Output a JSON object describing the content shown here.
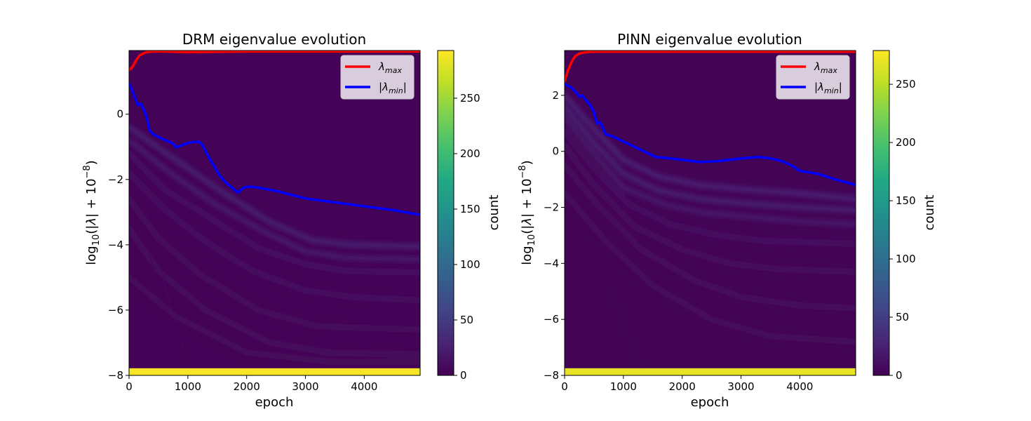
{
  "chart_data": [
    {
      "type": "heatmap",
      "title": "DRM eigenvalue evolution",
      "xlabel": "epoch",
      "ylabel": "log10(|λ| + 10^-8)",
      "xlim": [
        0,
        4950
      ],
      "ylim": [
        -8,
        1.95
      ],
      "xticks": [
        "0",
        "1000",
        "2000",
        "3000",
        "4000"
      ],
      "xtick_values": [
        0,
        1000,
        2000,
        3000,
        4000
      ],
      "yticks": [
        "−8",
        "−6",
        "−4",
        "−2",
        "0"
      ],
      "ytick_values": [
        -8,
        -6,
        -4,
        -2,
        0
      ],
      "colorbar": {
        "label": "count",
        "range": [
          0,
          293
        ],
        "ticks": [
          "0",
          "50",
          "100",
          "150",
          "200",
          "250"
        ],
        "tick_values": [
          0,
          50,
          100,
          150,
          200,
          250
        ]
      },
      "legend": {
        "position": "top-right",
        "entries": [
          "λmax",
          "|λmin|"
        ]
      },
      "series": [
        {
          "name": "λmax",
          "color": "#ff0000",
          "x": [
            0,
            60,
            120,
            180,
            240,
            300,
            400,
            600,
            1000,
            2000,
            3000,
            4000,
            4950
          ],
          "y": [
            1.35,
            1.45,
            1.65,
            1.8,
            1.86,
            1.9,
            1.92,
            1.92,
            1.9,
            1.92,
            1.92,
            1.92,
            1.92
          ]
        },
        {
          "name": "|λmin|",
          "color": "#0000ff",
          "x": [
            0,
            50,
            100,
            150,
            200,
            250,
            300,
            350,
            400,
            500,
            650,
            750,
            800,
            900,
            1000,
            1100,
            1200,
            1250,
            1350,
            1450,
            1550,
            1650,
            1750,
            1850,
            1900,
            1950,
            2050,
            2200,
            2500,
            3000,
            3500,
            4000,
            4500,
            4950
          ],
          "y": [
            0.95,
            0.75,
            0.5,
            0.28,
            0.32,
            0.15,
            -0.1,
            -0.5,
            -0.6,
            -0.7,
            -0.82,
            -0.9,
            -1.02,
            -0.95,
            -0.88,
            -0.85,
            -0.85,
            -0.95,
            -1.3,
            -1.6,
            -1.9,
            -2.1,
            -2.25,
            -2.4,
            -2.32,
            -2.25,
            -2.22,
            -2.25,
            -2.35,
            -2.58,
            -2.7,
            -2.82,
            -2.94,
            -3.08
          ]
        }
      ],
      "heat": {
        "bottom_band_count": 290,
        "background_count": 2,
        "ridges": [
          {
            "x": [
              0,
              800,
              1600,
              2400,
              3100,
              3800,
              4950
            ],
            "y": [
              -0.4,
              -1.4,
              -2.4,
              -3.3,
              -3.85,
              -4.0,
              -4.05
            ],
            "count": 25
          },
          {
            "x": [
              0,
              700,
              1500,
              2300,
              3000,
              3700,
              4950
            ],
            "y": [
              -0.8,
              -1.8,
              -2.8,
              -3.6,
              -4.2,
              -4.4,
              -4.45
            ],
            "count": 20
          },
          {
            "x": [
              0,
              600,
              1400,
              2200,
              3000,
              3700,
              4950
            ],
            "y": [
              -1.2,
              -2.3,
              -3.2,
              -4.1,
              -4.6,
              -4.8,
              -4.85
            ],
            "count": 15
          },
          {
            "x": [
              0,
              600,
              1300,
              2100,
              3000,
              3800,
              4950
            ],
            "y": [
              -1.8,
              -2.9,
              -3.9,
              -4.8,
              -5.4,
              -5.6,
              -5.7
            ],
            "count": 10
          },
          {
            "x": [
              0,
              500,
              1200,
              2200,
              3200,
              4950
            ],
            "y": [
              -2.6,
              -3.8,
              -4.9,
              -6.0,
              -6.5,
              -6.6
            ],
            "count": 8
          },
          {
            "x": [
              0,
              500,
              1300,
              2400,
              3400,
              4950
            ],
            "y": [
              -3.5,
              -4.8,
              -6.0,
              -7.0,
              -7.3,
              -7.35
            ],
            "count": 7
          },
          {
            "x": [
              0,
              800,
              2000,
              3500,
              4950
            ],
            "y": [
              -5.0,
              -6.2,
              -7.3,
              -7.6,
              -7.6
            ],
            "count": 6
          }
        ],
        "faint_lines": [
          {
            "x": [
              500,
              700,
              900,
              1100
            ],
            "y": [
              -4.5,
              -5.8,
              -7.0,
              -8.0
            ],
            "count": 8
          },
          {
            "x": [
              300,
              500,
              700,
              900
            ],
            "y": [
              -4.0,
              -5.2,
              -6.5,
              -8.0
            ],
            "count": 6
          }
        ]
      }
    },
    {
      "type": "heatmap",
      "title": "PINN eigenvalue evolution",
      "xlabel": "epoch",
      "ylabel": "log10(|λ| + 10^-8)",
      "xlim": [
        0,
        4950
      ],
      "ylim": [
        -8,
        3.6
      ],
      "xticks": [
        "0",
        "1000",
        "2000",
        "3000",
        "4000"
      ],
      "xtick_values": [
        0,
        1000,
        2000,
        3000,
        4000
      ],
      "yticks": [
        "−8",
        "−6",
        "−4",
        "−2",
        "0",
        "2"
      ],
      "ytick_values": [
        -8,
        -6,
        -4,
        -2,
        0,
        2
      ],
      "colorbar": {
        "label": "count",
        "range": [
          0,
          279
        ],
        "ticks": [
          "0",
          "50",
          "100",
          "150",
          "200",
          "250"
        ],
        "tick_values": [
          0,
          50,
          100,
          150,
          200,
          250
        ]
      },
      "legend": {
        "position": "top-right",
        "entries": [
          "λmax",
          "|λmin|"
        ]
      },
      "series": [
        {
          "name": "λmax",
          "color": "#ff0000",
          "x": [
            0,
            60,
            120,
            180,
            240,
            300,
            400,
            600,
            1000,
            2000,
            3000,
            4000,
            4950
          ],
          "y": [
            2.5,
            2.9,
            3.2,
            3.4,
            3.48,
            3.52,
            3.55,
            3.56,
            3.56,
            3.56,
            3.56,
            3.56,
            3.56
          ]
        },
        {
          "name": "|λmin|",
          "color": "#0000ff",
          "x": [
            0,
            100,
            200,
            250,
            300,
            350,
            400,
            450,
            500,
            550,
            600,
            650,
            700,
            800,
            1000,
            1200,
            1400,
            1550,
            1800,
            2000,
            2300,
            2600,
            3000,
            3300,
            3500,
            3700,
            3900,
            4000,
            4300,
            4600,
            4950
          ],
          "y": [
            2.4,
            2.3,
            2.1,
            1.95,
            2.0,
            1.85,
            1.75,
            1.6,
            1.4,
            1.0,
            1.05,
            0.85,
            0.6,
            0.55,
            0.35,
            0.15,
            -0.05,
            -0.2,
            -0.25,
            -0.3,
            -0.38,
            -0.35,
            -0.25,
            -0.2,
            -0.25,
            -0.35,
            -0.55,
            -0.7,
            -0.8,
            -1.0,
            -1.2
          ]
        }
      ],
      "heat": {
        "bottom_band_count": 270,
        "background_count": 2,
        "ridges": [
          {
            "x": [
              0,
              500,
              1000,
              1600,
              2300,
              3000,
              4000,
              4950
            ],
            "y": [
              2.0,
              0.8,
              -0.3,
              -0.9,
              -1.2,
              -1.35,
              -1.5,
              -1.7
            ],
            "count": 25
          },
          {
            "x": [
              0,
              500,
              1000,
              1600,
              2300,
              3000,
              4000,
              4950
            ],
            "y": [
              1.6,
              0.3,
              -0.8,
              -1.4,
              -1.7,
              -1.85,
              -2.0,
              -2.1
            ],
            "count": 22
          },
          {
            "x": [
              0,
              500,
              1000,
              1700,
              2400,
              3200,
              4000,
              4950
            ],
            "y": [
              1.2,
              -0.1,
              -1.3,
              -1.9,
              -2.2,
              -2.35,
              -2.5,
              -2.6
            ],
            "count": 16
          },
          {
            "x": [
              0,
              500,
              1100,
              1800,
              2600,
              3400,
              4950
            ],
            "y": [
              0.7,
              -0.6,
              -1.9,
              -2.6,
              -3.0,
              -3.2,
              -3.3
            ],
            "count": 10
          },
          {
            "x": [
              0,
              500,
              1200,
              2000,
              2800,
              3600,
              4950
            ],
            "y": [
              0.2,
              -1.2,
              -2.7,
              -3.5,
              -4.0,
              -4.2,
              -4.3
            ],
            "count": 8
          },
          {
            "x": [
              0,
              600,
              1300,
              2200,
              3000,
              4000,
              4950
            ],
            "y": [
              -0.5,
              -2.0,
              -3.5,
              -4.6,
              -5.2,
              -5.5,
              -5.6
            ],
            "count": 7
          },
          {
            "x": [
              0,
              700,
              1500,
              2500,
              3500,
              4950
            ],
            "y": [
              -1.5,
              -3.2,
              -4.8,
              -6.0,
              -6.6,
              -6.8
            ],
            "count": 6
          }
        ],
        "faint_lines": [
          {
            "x": [
              800,
              1000,
              1200,
              1400
            ],
            "y": [
              -5.0,
              -6.2,
              -7.2,
              -8.0
            ],
            "count": 6
          }
        ]
      }
    }
  ]
}
